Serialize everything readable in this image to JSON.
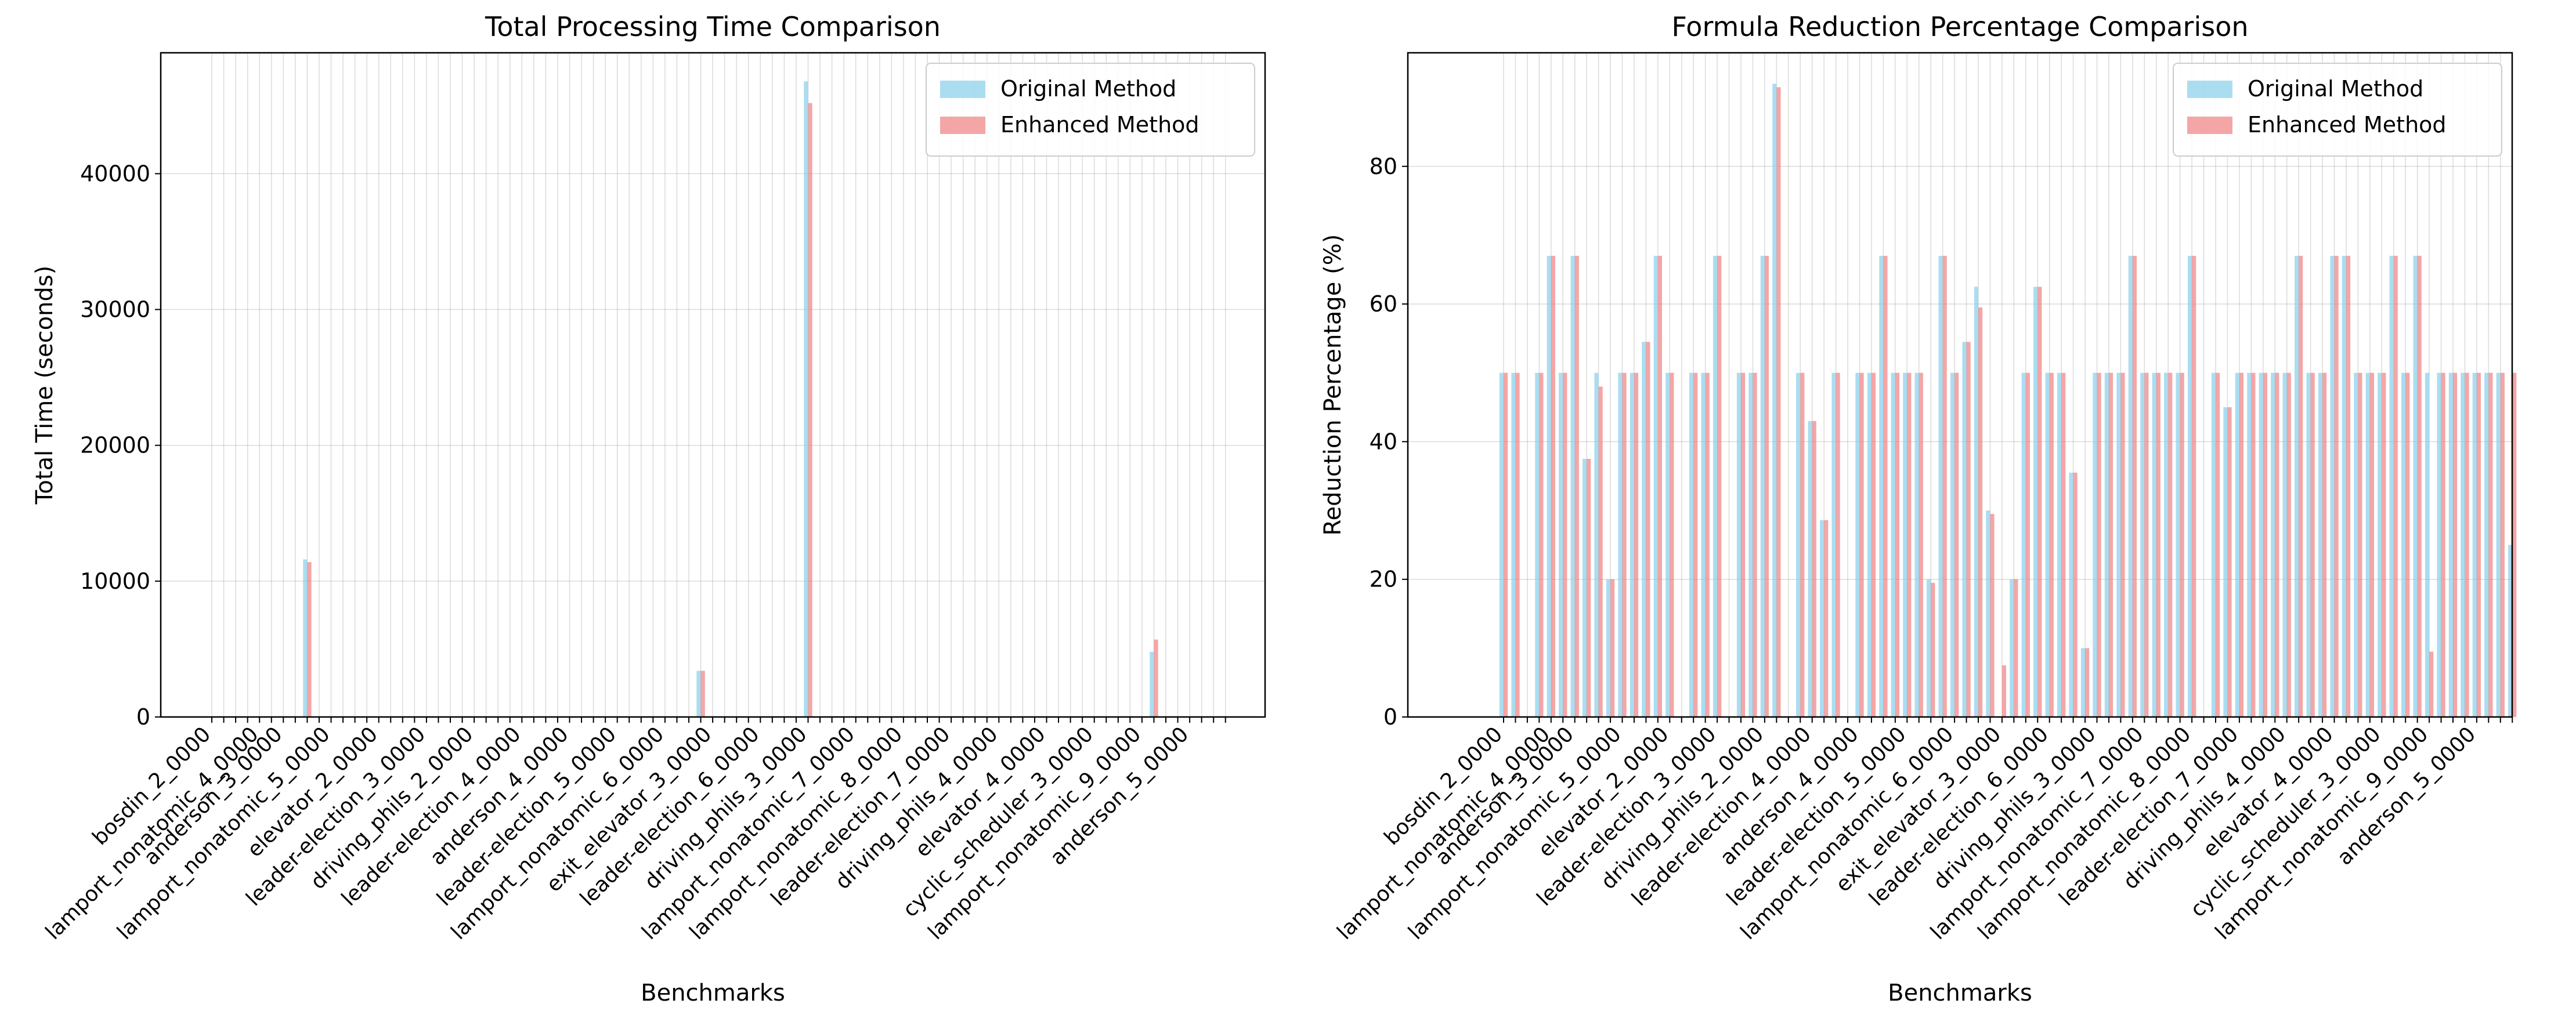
{
  "colors": {
    "original": "#87CEEB",
    "enhanced": "#F08080",
    "grid": "#b0b0b0",
    "axis": "#000000"
  },
  "legend": {
    "original": "Original Method",
    "enhanced": "Enhanced Method"
  },
  "chart_data": [
    {
      "type": "bar",
      "title": "Total Processing Time Comparison",
      "xlabel": "Benchmarks",
      "ylabel": "Total Time (seconds)",
      "ylim": [
        0,
        48900
      ],
      "yticks": [
        0,
        10000,
        20000,
        30000,
        40000
      ],
      "grid": true,
      "legend_position": "top-right",
      "bar_count": 86,
      "visible_categories": [
        {
          "index": 0,
          "label": "bosdin_2_0000"
        },
        {
          "index": 4,
          "label": "lamport_nonatomic_4_0000"
        },
        {
          "index": 6,
          "label": "anderson_3_0000"
        },
        {
          "index": 10,
          "label": "lamport_nonatomic_5_0000"
        },
        {
          "index": 14,
          "label": "elevator_2_0000"
        },
        {
          "index": 18,
          "label": "leader-election_3_0000"
        },
        {
          "index": 22,
          "label": "driving_phils_2_0000"
        },
        {
          "index": 26,
          "label": "leader-election_4_0000"
        },
        {
          "index": 30,
          "label": "anderson_4_0000"
        },
        {
          "index": 34,
          "label": "leader-election_5_0000"
        },
        {
          "index": 38,
          "label": "lamport_nonatomic_6_0000"
        },
        {
          "index": 42,
          "label": "exit_elevator_3_0000"
        },
        {
          "index": 46,
          "label": "leader-election_6_0000"
        },
        {
          "index": 50,
          "label": "driving_phils_3_0000"
        },
        {
          "index": 54,
          "label": "lamport_nonatomic_7_0000"
        },
        {
          "index": 58,
          "label": "lamport_nonatomic_8_0000"
        },
        {
          "index": 62,
          "label": "leader-election_7_0000"
        },
        {
          "index": 66,
          "label": "driving_phils_4_0000"
        },
        {
          "index": 70,
          "label": "elevator_4_0000"
        },
        {
          "index": 74,
          "label": "cyclic_scheduler_3_0000"
        },
        {
          "index": 78,
          "label": "lamport_nonatomic_9_0000"
        },
        {
          "index": 82,
          "label": "anderson_5_0000"
        }
      ],
      "series": [
        {
          "name": "Original Method",
          "values": [
            0,
            0,
            0,
            0,
            0,
            0,
            0,
            0,
            11600,
            0,
            0,
            0,
            0,
            0,
            0,
            0,
            0,
            0,
            0,
            0,
            0,
            0,
            0,
            0,
            0,
            0,
            0,
            0,
            0,
            0,
            0,
            0,
            0,
            0,
            0,
            0,
            0,
            0,
            0,
            0,
            0,
            3400,
            0,
            0,
            0,
            0,
            0,
            0,
            0,
            0,
            46800,
            0,
            0,
            0,
            0,
            0,
            0,
            0,
            0,
            0,
            0,
            0,
            0,
            0,
            0,
            0,
            0,
            0,
            0,
            0,
            0,
            0,
            0,
            0,
            0,
            0,
            0,
            0,
            0,
            4800,
            0,
            0,
            0,
            0,
            0,
            0
          ]
        },
        {
          "name": "Enhanced Method",
          "values": [
            0,
            0,
            0,
            0,
            0,
            0,
            0,
            0,
            11400,
            0,
            0,
            0,
            0,
            0,
            0,
            0,
            0,
            0,
            0,
            0,
            0,
            0,
            0,
            0,
            0,
            0,
            0,
            0,
            0,
            0,
            0,
            0,
            0,
            0,
            0,
            0,
            0,
            0,
            0,
            0,
            0,
            3400,
            0,
            0,
            0,
            0,
            0,
            0,
            0,
            0,
            45200,
            0,
            0,
            0,
            0,
            0,
            0,
            0,
            0,
            0,
            0,
            0,
            0,
            0,
            0,
            0,
            0,
            0,
            0,
            0,
            0,
            0,
            0,
            0,
            0,
            0,
            0,
            0,
            0,
            5700,
            0,
            0,
            0,
            0,
            0,
            0
          ]
        }
      ]
    },
    {
      "type": "bar",
      "title": "Formula Reduction Percentage Comparison",
      "xlabel": "Benchmarks",
      "ylabel": "Reduction Percentage (%)",
      "ylim": [
        0,
        96.5
      ],
      "yticks": [
        0,
        20,
        40,
        60,
        80
      ],
      "grid": true,
      "legend_position": "top-right",
      "bar_count": 86,
      "visible_categories": [
        {
          "index": 0,
          "label": "bosdin_2_0000"
        },
        {
          "index": 4,
          "label": "lamport_nonatomic_4_0000"
        },
        {
          "index": 6,
          "label": "anderson_3_0000"
        },
        {
          "index": 10,
          "label": "lamport_nonatomic_5_0000"
        },
        {
          "index": 14,
          "label": "elevator_2_0000"
        },
        {
          "index": 18,
          "label": "leader-election_3_0000"
        },
        {
          "index": 22,
          "label": "driving_phils_2_0000"
        },
        {
          "index": 26,
          "label": "leader-election_4_0000"
        },
        {
          "index": 30,
          "label": "anderson_4_0000"
        },
        {
          "index": 34,
          "label": "leader-election_5_0000"
        },
        {
          "index": 38,
          "label": "lamport_nonatomic_6_0000"
        },
        {
          "index": 42,
          "label": "exit_elevator_3_0000"
        },
        {
          "index": 46,
          "label": "leader-election_6_0000"
        },
        {
          "index": 50,
          "label": "driving_phils_3_0000"
        },
        {
          "index": 54,
          "label": "lamport_nonatomic_7_0000"
        },
        {
          "index": 58,
          "label": "lamport_nonatomic_8_0000"
        },
        {
          "index": 62,
          "label": "leader-election_7_0000"
        },
        {
          "index": 66,
          "label": "driving_phils_4_0000"
        },
        {
          "index": 70,
          "label": "elevator_4_0000"
        },
        {
          "index": 74,
          "label": "cyclic_scheduler_3_0000"
        },
        {
          "index": 78,
          "label": "lamport_nonatomic_9_0000"
        },
        {
          "index": 82,
          "label": "anderson_5_0000"
        }
      ],
      "series": [
        {
          "name": "Original Method",
          "values": [
            50,
            50,
            0,
            50,
            67,
            50,
            67,
            37.5,
            50,
            20,
            50,
            50,
            54.5,
            67,
            50,
            0,
            50,
            50,
            67,
            0,
            50,
            50,
            67,
            92,
            0,
            50,
            43,
            28.6,
            50,
            0,
            50,
            50,
            67,
            50,
            50,
            50,
            20,
            67,
            50,
            54.5,
            62.5,
            30,
            0,
            20,
            50,
            62.5,
            50,
            50,
            35.5,
            10,
            50,
            50,
            50,
            67,
            50,
            50,
            50,
            50,
            67,
            0,
            50,
            45,
            50,
            50,
            50,
            50,
            50,
            67,
            50,
            50,
            67,
            67,
            50,
            50,
            50,
            67,
            50,
            67,
            50,
            50,
            50,
            50,
            50,
            50,
            50,
            25
          ]
        },
        {
          "name": "Enhanced Method",
          "values": [
            50,
            50,
            0,
            50,
            67,
            50,
            67,
            37.5,
            48,
            20,
            50,
            50,
            54.5,
            67,
            50,
            0,
            50,
            50,
            67,
            0,
            50,
            50,
            67,
            91.5,
            0,
            50,
            43,
            28.6,
            50,
            0,
            50,
            50,
            67,
            50,
            50,
            50,
            19.5,
            67,
            50,
            54.5,
            59.5,
            29.5,
            7.5,
            20,
            50,
            62.5,
            50,
            50,
            35.5,
            10,
            50,
            50,
            50,
            67,
            50,
            50,
            50,
            50,
            67,
            0,
            50,
            45,
            50,
            50,
            50,
            50,
            50,
            67,
            50,
            50,
            67,
            67,
            50,
            50,
            50,
            67,
            50,
            67,
            9.5,
            50,
            50,
            50,
            50,
            50,
            50,
            50
          ]
        }
      ]
    }
  ]
}
